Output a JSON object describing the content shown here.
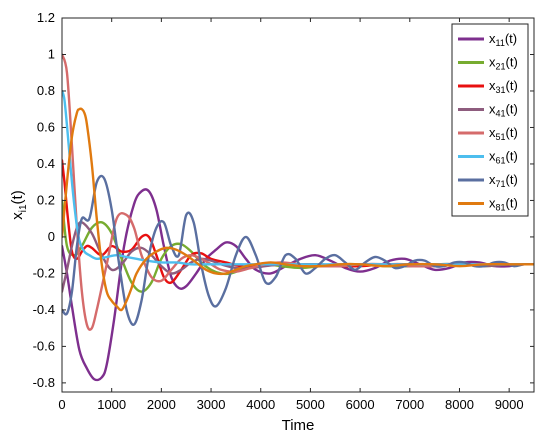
{
  "chart_data": {
    "type": "line",
    "title": "",
    "xlabel": "Time",
    "ylabel": "x",
    "ylabel_subscript": "i1",
    "ylabel_suffix": "(t)",
    "xlim": [
      0,
      9500
    ],
    "ylim": [
      -0.85,
      1.2
    ],
    "xticks": [
      0,
      1000,
      2000,
      3000,
      4000,
      5000,
      6000,
      7000,
      8000,
      9000
    ],
    "yticks": [
      -0.8,
      -0.6,
      -0.4,
      -0.2,
      0,
      0.2,
      0.4,
      0.6,
      0.8,
      1,
      1.2
    ],
    "xtick_labels": [
      "0",
      "1000",
      "2000",
      "3000",
      "4000",
      "5000",
      "6000",
      "7000",
      "8000",
      "9000"
    ],
    "ytick_labels": [
      "-0.8",
      "-0.6",
      "-0.4",
      "-0.2",
      "0",
      "0.2",
      "0.4",
      "0.6",
      "0.8",
      "1",
      "1.2"
    ],
    "grid": false,
    "legend_position": "top-right",
    "series": [
      {
        "name": "x",
        "sub": "11",
        "suffix": "(t)",
        "color": "#7E2F8E",
        "x": [
          0,
          100,
          200,
          350,
          500,
          650,
          800,
          900,
          1050,
          1250,
          1450,
          1600,
          1750,
          1900,
          2050,
          2200,
          2350,
          2500,
          2700,
          2900,
          3100,
          3300,
          3500,
          3700,
          3900,
          4200,
          4500,
          4800,
          5100,
          5400,
          5700,
          6000,
          6300,
          6600,
          6900,
          7200,
          7500,
          7800,
          8100,
          8400,
          8700,
          9000,
          9300,
          9500
        ],
        "y": [
          -0.05,
          -0.2,
          -0.38,
          -0.62,
          -0.72,
          -0.78,
          -0.77,
          -0.7,
          -0.45,
          -0.05,
          0.18,
          0.25,
          0.25,
          0.15,
          -0.05,
          -0.22,
          -0.28,
          -0.27,
          -0.2,
          -0.12,
          -0.07,
          -0.03,
          -0.05,
          -0.12,
          -0.18,
          -0.2,
          -0.16,
          -0.12,
          -0.1,
          -0.13,
          -0.17,
          -0.19,
          -0.17,
          -0.13,
          -0.12,
          -0.15,
          -0.18,
          -0.17,
          -0.14,
          -0.14,
          -0.16,
          -0.16,
          -0.15,
          -0.15
        ]
      },
      {
        "name": "x",
        "sub": "21",
        "suffix": "(t)",
        "color": "#77AC30",
        "x": [
          0,
          100,
          250,
          400,
          600,
          800,
          1000,
          1200,
          1400,
          1600,
          1800,
          2000,
          2200,
          2400,
          2600,
          2800,
          3000,
          3200,
          3400,
          3600,
          3800,
          4100,
          4400,
          4800,
          5200,
          5600,
          6000,
          6500,
          7000,
          7500,
          8000,
          8500,
          9000,
          9500
        ],
        "y": [
          0.2,
          -0.05,
          -0.1,
          -0.05,
          0.05,
          0.08,
          0.02,
          -0.12,
          -0.25,
          -0.3,
          -0.25,
          -0.12,
          -0.05,
          -0.04,
          -0.08,
          -0.14,
          -0.18,
          -0.2,
          -0.2,
          -0.18,
          -0.16,
          -0.15,
          -0.16,
          -0.17,
          -0.16,
          -0.15,
          -0.15,
          -0.16,
          -0.16,
          -0.15,
          -0.15,
          -0.16,
          -0.15,
          -0.15
        ]
      },
      {
        "name": "x",
        "sub": "31",
        "suffix": "(t)",
        "color": "#E81010",
        "x": [
          0,
          50,
          120,
          200,
          300,
          400,
          500,
          600,
          800,
          1000,
          1200,
          1400,
          1600,
          1750,
          1900,
          2050,
          2200,
          2400,
          2600,
          2800,
          3000,
          3300,
          3600,
          4000,
          4400,
          4800,
          5200,
          5600,
          6000,
          6500,
          7000,
          7500,
          8000,
          8500,
          9000,
          9500
        ],
        "y": [
          0.42,
          0.3,
          0.1,
          -0.08,
          -0.12,
          -0.08,
          -0.05,
          -0.06,
          -0.1,
          -0.05,
          -0.08,
          -0.07,
          0.0,
          0.0,
          -0.1,
          -0.22,
          -0.25,
          -0.18,
          -0.1,
          -0.09,
          -0.12,
          -0.14,
          -0.16,
          -0.16,
          -0.15,
          -0.15,
          -0.15,
          -0.16,
          -0.16,
          -0.15,
          -0.15,
          -0.16,
          -0.15,
          -0.15,
          -0.15,
          -0.15
        ]
      },
      {
        "name": "x",
        "sub": "41",
        "suffix": "(t)",
        "color": "#8E5C7E",
        "x": [
          0,
          100,
          200,
          300,
          400,
          600,
          800,
          1000,
          1200,
          1400,
          1600,
          1800,
          2000,
          2200,
          2400,
          2600,
          2800,
          3000,
          3200,
          3500,
          3800,
          4100,
          4400,
          4800,
          5200,
          5600,
          6000,
          6500,
          7000,
          7500,
          8000,
          8500,
          9000,
          9500
        ],
        "y": [
          -0.3,
          -0.18,
          -0.05,
          0.05,
          0.08,
          0.02,
          -0.1,
          -0.18,
          -0.15,
          -0.08,
          -0.06,
          -0.1,
          -0.16,
          -0.2,
          -0.18,
          -0.14,
          -0.12,
          -0.13,
          -0.15,
          -0.17,
          -0.17,
          -0.16,
          -0.15,
          -0.15,
          -0.16,
          -0.16,
          -0.15,
          -0.15,
          -0.16,
          -0.15,
          -0.15,
          -0.16,
          -0.15,
          -0.15
        ]
      },
      {
        "name": "x",
        "sub": "51",
        "suffix": "(t)",
        "color": "#D56B6B",
        "x": [
          0,
          100,
          200,
          300,
          400,
          500,
          600,
          700,
          900,
          1100,
          1300,
          1450,
          1600,
          1800,
          2000,
          2200,
          2400,
          2600,
          2800,
          3000,
          3200,
          3500,
          3800,
          4100,
          4400,
          4800,
          5200,
          5600,
          6000,
          6500,
          7000,
          7500,
          8000,
          8500,
          9000,
          9500
        ],
        "y": [
          1.0,
          0.9,
          0.5,
          0.05,
          -0.3,
          -0.48,
          -0.5,
          -0.4,
          -0.15,
          0.1,
          0.12,
          0.05,
          -0.1,
          -0.22,
          -0.24,
          -0.18,
          -0.12,
          -0.1,
          -0.12,
          -0.15,
          -0.18,
          -0.19,
          -0.17,
          -0.15,
          -0.14,
          -0.15,
          -0.16,
          -0.16,
          -0.15,
          -0.15,
          -0.16,
          -0.16,
          -0.15,
          -0.15,
          -0.15,
          -0.15
        ]
      },
      {
        "name": "x",
        "sub": "61",
        "suffix": "(t)",
        "color": "#4DBEEE",
        "x": [
          0,
          50,
          120,
          200,
          280,
          350,
          450,
          550,
          700,
          900,
          1100,
          1300,
          1500,
          1700,
          2000,
          2300,
          2600,
          3000,
          3400,
          3800,
          4200,
          4600,
          5000,
          5500,
          6000,
          6500,
          7000,
          7500,
          8000,
          8500,
          9000,
          9500
        ],
        "y": [
          0.8,
          0.75,
          0.55,
          0.3,
          0.1,
          -0.02,
          -0.08,
          -0.1,
          -0.12,
          -0.11,
          -0.1,
          -0.11,
          -0.12,
          -0.13,
          -0.14,
          -0.14,
          -0.15,
          -0.15,
          -0.15,
          -0.15,
          -0.15,
          -0.15,
          -0.15,
          -0.15,
          -0.15,
          -0.15,
          -0.15,
          -0.15,
          -0.15,
          -0.15,
          -0.15,
          -0.15
        ]
      },
      {
        "name": "x",
        "sub": "71",
        "suffix": "(t)",
        "color": "#5A6FA0",
        "x": [
          0,
          100,
          200,
          300,
          400,
          550,
          700,
          850,
          1000,
          1150,
          1300,
          1450,
          1600,
          1750,
          1900,
          2050,
          2200,
          2350,
          2500,
          2650,
          2800,
          2950,
          3100,
          3300,
          3500,
          3700,
          3900,
          4100,
          4300,
          4500,
          4700,
          4900,
          5100,
          5300,
          5500,
          5700,
          5900,
          6100,
          6300,
          6500,
          6700,
          6900,
          7100,
          7300,
          7500,
          7700,
          7900,
          8100,
          8300,
          8500,
          8700,
          8900,
          9100,
          9300,
          9500
        ],
        "y": [
          -0.4,
          -0.42,
          -0.3,
          -0.05,
          0.1,
          0.1,
          0.3,
          0.32,
          0.15,
          -0.15,
          -0.4,
          -0.48,
          -0.35,
          -0.1,
          0.05,
          0.08,
          -0.05,
          -0.1,
          0.12,
          0.08,
          -0.15,
          -0.32,
          -0.38,
          -0.28,
          -0.1,
          0.0,
          -0.1,
          -0.25,
          -0.22,
          -0.1,
          -0.12,
          -0.2,
          -0.17,
          -0.12,
          -0.1,
          -0.14,
          -0.18,
          -0.14,
          -0.11,
          -0.13,
          -0.17,
          -0.16,
          -0.13,
          -0.13,
          -0.16,
          -0.16,
          -0.14,
          -0.14,
          -0.16,
          -0.16,
          -0.14,
          -0.14,
          -0.16,
          -0.15,
          -0.15
        ]
      },
      {
        "name": "x",
        "sub": "81",
        "suffix": "(t)",
        "color": "#E07A10",
        "x": [
          0,
          100,
          200,
          300,
          350,
          400,
          450,
          500,
          600,
          700,
          800,
          900,
          1000,
          1100,
          1200,
          1300,
          1400,
          1500,
          1700,
          1900,
          2100,
          2300,
          2500,
          2700,
          2900,
          3100,
          3300,
          3500,
          3700,
          3900,
          4200,
          4500,
          4800,
          5200,
          5600,
          6000,
          6500,
          7000,
          7500,
          8000,
          8500,
          9000,
          9500
        ],
        "y": [
          0.0,
          0.3,
          0.55,
          0.68,
          0.7,
          0.7,
          0.68,
          0.62,
          0.4,
          0.1,
          -0.15,
          -0.3,
          -0.35,
          -0.38,
          -0.4,
          -0.35,
          -0.28,
          -0.2,
          -0.12,
          -0.08,
          -0.06,
          -0.07,
          -0.1,
          -0.14,
          -0.18,
          -0.2,
          -0.2,
          -0.18,
          -0.16,
          -0.15,
          -0.14,
          -0.15,
          -0.16,
          -0.16,
          -0.15,
          -0.15,
          -0.16,
          -0.15,
          -0.15,
          -0.16,
          -0.15,
          -0.15,
          -0.15
        ]
      }
    ]
  }
}
